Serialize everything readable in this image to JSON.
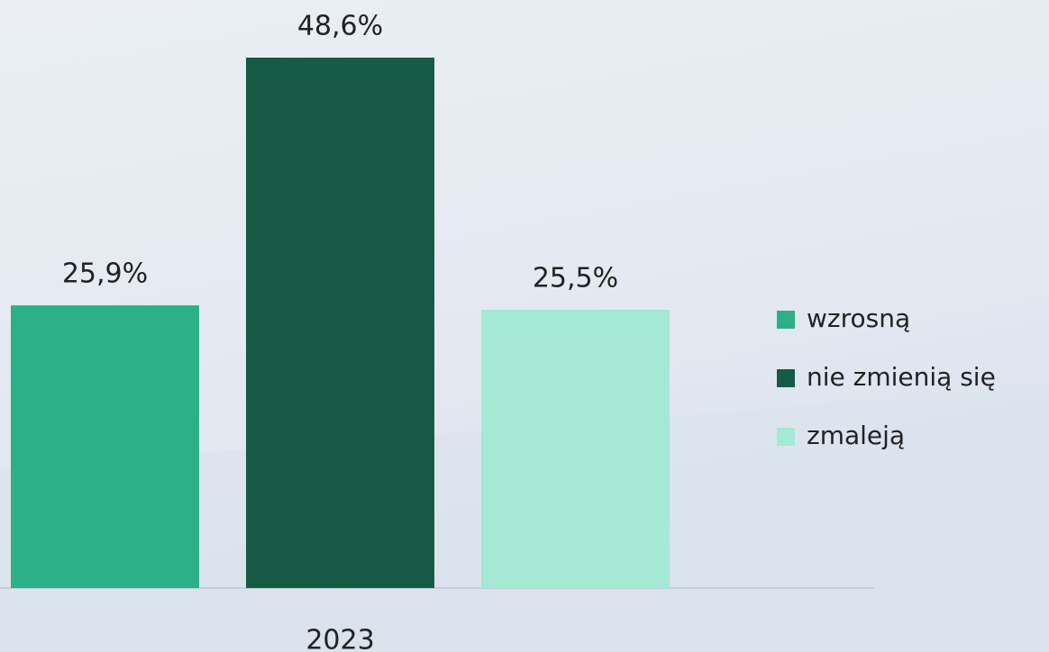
{
  "chart_data": {
    "type": "bar",
    "categories": [
      "2023"
    ],
    "series": [
      {
        "name": "wzrosną",
        "color": "#2bb087",
        "values": [
          25.9
        ],
        "value_labels": [
          "25,9%"
        ]
      },
      {
        "name": "nie zmienią się",
        "color": "#175a46",
        "values": [
          48.6
        ],
        "value_labels": [
          "48,6%"
        ]
      },
      {
        "name": "zmaleją",
        "color": "#a3e9d4",
        "values": [
          25.5
        ],
        "value_labels": [
          "25,5%"
        ]
      }
    ],
    "legend": "right"
  }
}
